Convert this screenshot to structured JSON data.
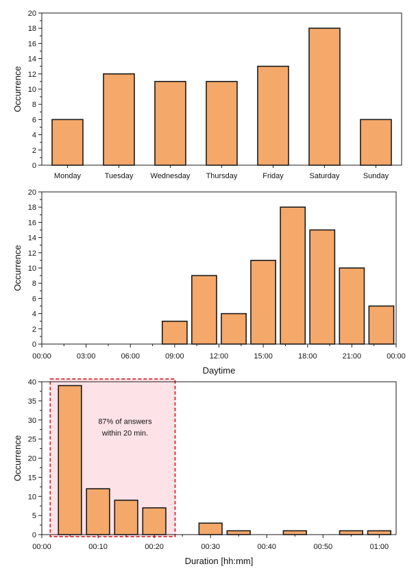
{
  "style": {
    "bar_fill": "#F4A86A",
    "bar_stroke": "#1A1A1A",
    "highlight_fill": "#FDE3E8",
    "highlight_stroke": "#D9262C"
  },
  "chart_data": [
    {
      "type": "bar",
      "title": "",
      "xlabel": "",
      "ylabel": "Occurrence",
      "categories": [
        "Monday",
        "Tuesday",
        "Wednesday",
        "Thursday",
        "Friday",
        "Saturday",
        "Sunday"
      ],
      "values": [
        6,
        12,
        11,
        11,
        13,
        18,
        6
      ],
      "ylim": [
        0,
        20
      ],
      "yticks": [
        0,
        2,
        4,
        6,
        8,
        10,
        12,
        14,
        16,
        18,
        20
      ],
      "grid": false
    },
    {
      "type": "bar",
      "title": "",
      "xlabel": "Daytime",
      "ylabel": "Occurrence",
      "bin_width_hours": 2,
      "bins": [
        {
          "start": "08:00",
          "value": 3
        },
        {
          "start": "10:00",
          "value": 9
        },
        {
          "start": "12:00",
          "value": 4
        },
        {
          "start": "14:00",
          "value": 11
        },
        {
          "start": "16:00",
          "value": 18
        },
        {
          "start": "18:00",
          "value": 15
        },
        {
          "start": "20:00",
          "value": 10
        },
        {
          "start": "22:00",
          "value": 5
        }
      ],
      "xlim_hours": [
        0,
        24
      ],
      "xticks": [
        "00:00",
        "03:00",
        "06:00",
        "09:00",
        "12:00",
        "15:00",
        "18:00",
        "21:00",
        "00:00"
      ],
      "ylim": [
        0,
        20
      ],
      "yticks": [
        0,
        2,
        4,
        6,
        8,
        10,
        12,
        14,
        16,
        18,
        20
      ],
      "grid": false
    },
    {
      "type": "bar",
      "title": "",
      "xlabel": "Duration [hh:mm]",
      "ylabel": "Occurrence",
      "bin_width_minutes": 5,
      "bins": [
        {
          "start": "00:02.5",
          "center_minutes": 5,
          "value": 39
        },
        {
          "start": "00:07.5",
          "center_minutes": 10,
          "value": 12
        },
        {
          "start": "00:12.5",
          "center_minutes": 15,
          "value": 9
        },
        {
          "start": "00:17.5",
          "center_minutes": 20,
          "value": 7
        },
        {
          "start": "00:27.5",
          "center_minutes": 30,
          "value": 3
        },
        {
          "start": "00:32.5",
          "center_minutes": 35,
          "value": 1
        },
        {
          "start": "00:42.5",
          "center_minutes": 45,
          "value": 1
        },
        {
          "start": "00:52.5",
          "center_minutes": 55,
          "value": 1
        },
        {
          "start": "00:57.5",
          "center_minutes": 60,
          "value": 1
        }
      ],
      "xlim_minutes": [
        0,
        63
      ],
      "xticks": [
        "00:00",
        "00:10",
        "00:20",
        "00:30",
        "00:40",
        "00:50",
        "01:00"
      ],
      "ylim": [
        0,
        40
      ],
      "yticks": [
        0,
        5,
        10,
        15,
        20,
        25,
        30,
        35,
        40
      ],
      "grid": false,
      "highlight": {
        "from_minutes": 1.5,
        "to_minutes": 23.7
      },
      "annotation": [
        "87% of answers",
        "within 20 min."
      ]
    }
  ]
}
